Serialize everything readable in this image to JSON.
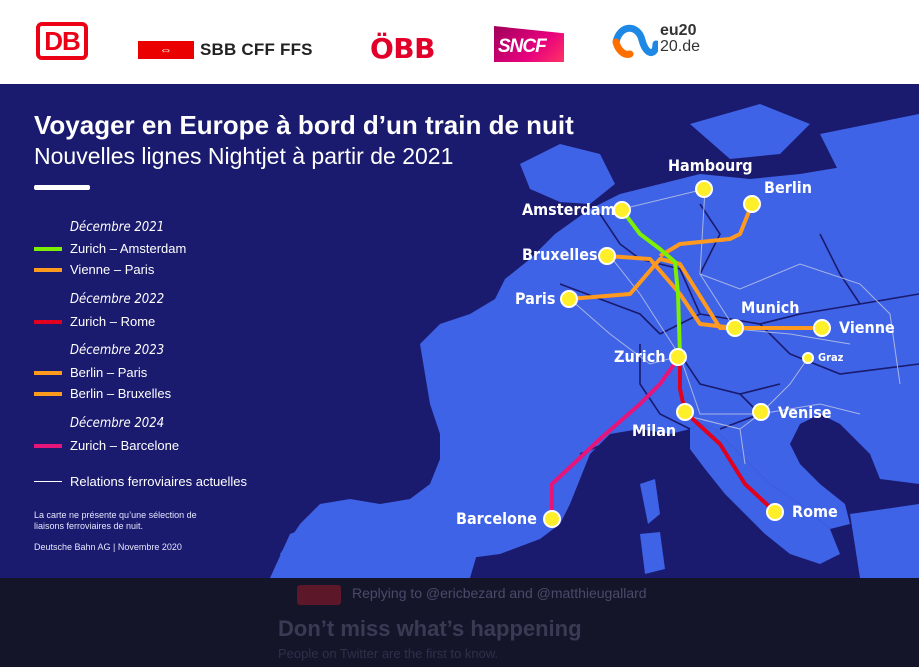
{
  "logos": {
    "db": "DB",
    "sbb": "SBB CFF FFS",
    "obb": "ÖBB",
    "sncf": "SNCF",
    "eu_line1": "eu20",
    "eu_line2": "20.de"
  },
  "map": {
    "title": "Voyager en Europe à bord d’un train de nuit",
    "subtitle": "Nouvelles lignes Nightjet à partir de 2021",
    "colors": {
      "sea": "#1a1a6e",
      "land": "#3e63e6",
      "green": "#7cf000",
      "orange": "#ff9a1f",
      "red": "#e1001e",
      "pink": "#e5157a",
      "station": "#ffef2a"
    },
    "legend": {
      "year_2021": "Décembre 2021",
      "zurich_amsterdam": "Zurich – Amsterdam",
      "vienne_paris": "Vienne – Paris",
      "year_2022": "Décembre 2022",
      "zurich_rome": "Zurich – Rome",
      "year_2023": "Décembre 2023",
      "berlin_paris": "Berlin – Paris",
      "berlin_bruxelles": "Berlin – Bruxelles",
      "year_2024": "Décembre 2024",
      "zurich_barcelone": "Zurich – Barcelone",
      "relations": "Relations ferroviaires actuelles"
    },
    "note": "La carte ne présente qu’une sélection de liaisons ferroviaires de nuit.",
    "credit": "Deutsche Bahn AG | Novembre 2020",
    "cities": {
      "hambourg": "Hambourg",
      "berlin": "Berlin",
      "amsterdam": "Amsterdam",
      "bruxelles": "Bruxelles",
      "paris": "Paris",
      "munich": "Munich",
      "vienne": "Vienne",
      "graz": "Graz",
      "zurich": "Zurich",
      "milan": "Milan",
      "venise": "Venise",
      "barcelone": "Barcelone",
      "rome": "Rome"
    }
  },
  "twitter": {
    "reply_text": "Replying to @ericbezard and @matthieugallard",
    "cta_title": "Don’t miss what’s happening",
    "cta_sub": "People on Twitter are the first to know."
  }
}
